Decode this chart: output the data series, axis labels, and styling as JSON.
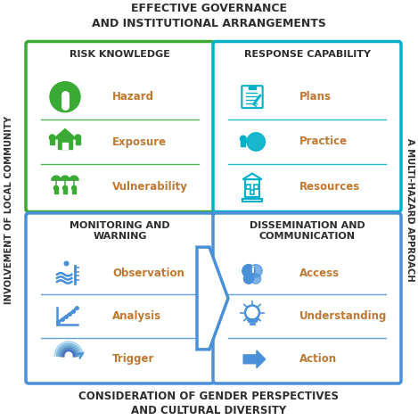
{
  "title_top": "EFFECTIVE GOVERNANCE\nAND INSTITUTIONAL ARRANGEMENTS",
  "title_bottom": "CONSIDERATION OF GENDER PERSPECTIVES\nAND CULTURAL DIVERSITY",
  "left_label": "INVOLVEMENT OF LOCAL COMMUNITY",
  "right_label": "A MULTI-HAZARD APPROACH",
  "box_tl_title": "RISK KNOWLEDGE",
  "box_tr_title": "RESPONSE CAPABILITY",
  "box_bl_title": "MONITORING AND\nWARNING",
  "box_br_title": "DISSEMINATION AND\nCOMMUNICATION",
  "box_tl_items": [
    "Hazard",
    "Exposure",
    "Vulnerability"
  ],
  "box_tr_items": [
    "Plans",
    "Practice",
    "Resources"
  ],
  "box_bl_items": [
    "Observation",
    "Analysis",
    "Trigger"
  ],
  "box_br_items": [
    "Access",
    "Understanding",
    "Action"
  ],
  "color_green": "#3aaa35",
  "color_teal": "#00b0c8",
  "color_blue": "#4a90d9",
  "color_dark": "#2d2d2d",
  "color_item_text": "#c07830",
  "bg_color": "#ffffff"
}
